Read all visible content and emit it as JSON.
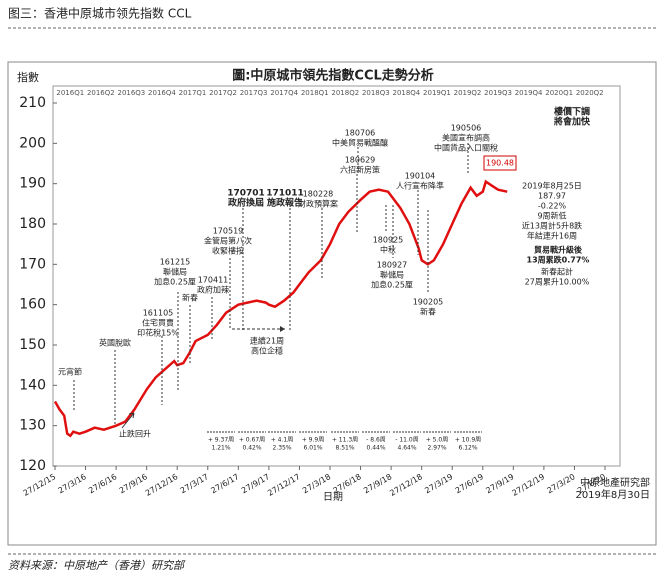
{
  "header": "图三：香港中原城市领先指数 CCL",
  "source": "资料来源：中原地产（香港）研究部",
  "chart_data": {
    "type": "line",
    "title": "圖:中原城市領先指數CCL走勢分析",
    "ylabel": "指數",
    "xlabel": "日期",
    "credit": [
      "中原地產研究部",
      "2019年8月30日"
    ],
    "ylim": [
      120,
      210
    ],
    "yticks": [
      120,
      130,
      140,
      150,
      160,
      170,
      180,
      190,
      200,
      210
    ],
    "xlim": [
      0,
      18
    ],
    "xticks": [
      {
        "value": 0,
        "label": "27/12/15"
      },
      {
        "value": 1,
        "label": "27/3/16"
      },
      {
        "value": 2,
        "label": "27/6/16"
      },
      {
        "value": 3,
        "label": "27/9/16"
      },
      {
        "value": 4,
        "label": "27/12/16"
      },
      {
        "value": 5,
        "label": "27/3/17"
      },
      {
        "value": 6,
        "label": "27/6/17"
      },
      {
        "value": 7,
        "label": "27/9/17"
      },
      {
        "value": 8,
        "label": "27/12/17"
      },
      {
        "value": 9,
        "label": "27/3/18"
      },
      {
        "value": 10,
        "label": "27/6/18"
      },
      {
        "value": 11,
        "label": "27/9/18"
      },
      {
        "value": 12,
        "label": "27/12/18"
      },
      {
        "value": 13,
        "label": "27/3/19"
      },
      {
        "value": 14,
        "label": "27/6/19"
      },
      {
        "value": 15,
        "label": "27/9/19"
      },
      {
        "value": 16,
        "label": "27/12/19"
      },
      {
        "value": 17,
        "label": "27/3/20"
      },
      {
        "value": 18,
        "label": "27/6/20"
      }
    ],
    "quarters": [
      "2016Q1",
      "2016Q2",
      "2016Q3",
      "2016Q4",
      "2017Q1",
      "2017Q2",
      "2017Q3",
      "2017Q4",
      "2018Q1",
      "2018Q2",
      "2018Q3",
      "2018Q4",
      "2019Q1",
      "2019Q2",
      "2019Q3",
      "2019Q4",
      "2020Q1",
      "2020Q2"
    ],
    "series": [
      {
        "name": "CCL",
        "color": "#e01010",
        "x": [
          0,
          0.15,
          0.3,
          0.4,
          0.5,
          0.6,
          0.8,
          1.0,
          1.3,
          1.6,
          2.0,
          2.3,
          2.6,
          3.0,
          3.3,
          3.6,
          3.9,
          4.0,
          4.2,
          4.4,
          4.6,
          5.0,
          5.3,
          5.6,
          6.0,
          6.3,
          6.6,
          6.9,
          7.0,
          7.2,
          7.5,
          7.8,
          8.0,
          8.3,
          8.7,
          9.0,
          9.3,
          9.6,
          10.0,
          10.3,
          10.6,
          10.9,
          11.0,
          11.3,
          11.6,
          11.9,
          12.0,
          12.2,
          12.4,
          12.7,
          13.0,
          13.3,
          13.6,
          13.8,
          14.0,
          14.1,
          14.3,
          14.5,
          14.8
        ],
        "values": [
          136,
          134,
          132.5,
          128,
          127.5,
          128.5,
          128,
          128.5,
          129.5,
          129,
          130,
          131,
          134,
          139,
          142,
          144,
          146,
          145,
          145.5,
          148,
          151,
          152.5,
          155,
          158,
          160,
          160.5,
          161,
          160.5,
          160,
          159.5,
          161,
          163,
          165,
          168,
          171,
          175,
          180,
          183,
          186,
          188,
          188.5,
          188,
          187,
          184,
          180,
          174,
          171,
          170,
          171,
          175,
          180,
          185,
          189,
          187,
          188,
          190.5,
          189.5,
          188.5,
          188
        ]
      }
    ],
    "annotations": [
      [
        "元宵節"
      ],
      [
        "英國脫歐"
      ],
      [
        "止跌回升"
      ],
      [
        "161105",
        "住宅買賣",
        "印花稅15%"
      ],
      [
        "161215",
        "聯儲局",
        "加息0.25厘"
      ],
      [
        "新春"
      ],
      [
        "170411",
        "政府加辣"
      ],
      [
        "170519",
        "金管局第八次",
        "收緊樓按"
      ],
      [
        "170701",
        "政府換屆"
      ],
      [
        "171011",
        "施政報告"
      ],
      [
        "180228",
        "財政預算案"
      ],
      [
        "180706",
        "中美貿易戰醞釀"
      ],
      [
        "180629",
        "六招新房策"
      ],
      [
        "180925",
        "中秋"
      ],
      [
        "180927",
        "聯儲局",
        "加息0.25厘"
      ],
      [
        "190104",
        "人行宣布降準"
      ],
      [
        "190205",
        "新春"
      ],
      [
        "190506",
        "美國宣布調高",
        "中國貨品入口關稅"
      ],
      [
        "190.48"
      ],
      [
        "樓價下調",
        "將會加快"
      ],
      [
        "2019年8月25日",
        "187.97",
        "-0.22%",
        "9周新低",
        "近13周計5升8跌",
        "年結連升16周"
      ],
      [
        "貿易戰升級後",
        "13周累跌0.77%"
      ],
      [
        "新春起計",
        "27周累升10.00%"
      ],
      [
        "連續21周",
        "高位企穩"
      ]
    ],
    "ranges": [
      [
        "+ 9.37周",
        "1.21%"
      ],
      [
        "+ 0.67周",
        "0.42%"
      ],
      [
        "+ 4.1周",
        "2.35%"
      ],
      [
        "+ 9.9周",
        "6.01%"
      ],
      [
        "+ 11.3周",
        "8.51%"
      ],
      [
        "- 8.6周",
        "0.44%"
      ],
      [
        "- 11.0周",
        "4.64%"
      ],
      [
        "+ 5.0周",
        "2.97%"
      ],
      [
        "+ 10.9周",
        "6.12%"
      ]
    ]
  }
}
